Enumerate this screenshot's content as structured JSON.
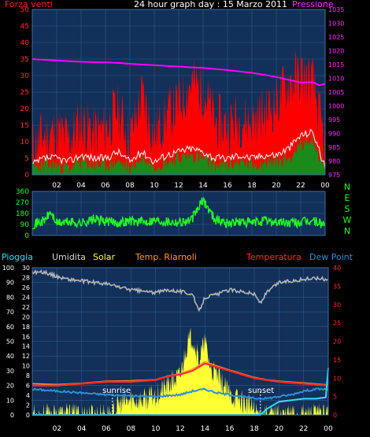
{
  "header": {
    "title": "24 hour graph day : 15 Marzo 2011",
    "left_label": "Forza venti",
    "right_label": "Pressione"
  },
  "legend": {
    "rain": "Pioggia",
    "humidity": "Umidita",
    "solar": "Solar",
    "heating_temp": "Temp. Riarnoli",
    "temperature": "Temperatura",
    "dew_point": "Dew Point"
  },
  "annotations": {
    "sunrise": "sunrise",
    "sunset": "sunset"
  },
  "colors": {
    "background": "#000000",
    "panel": "#12305a",
    "grid": "#2b5a8c",
    "wind_gust": "#ff0000",
    "wind_avg": "#ffffff",
    "wind_speed": "#1a8a1a",
    "pressure": "#ff00ff",
    "direction": "#22ff22",
    "humidity": "#b4b4b4",
    "solar": "#ffff33",
    "temperature": "#ff2a2a",
    "heating_temp": "#ff9933",
    "dew_point": "#2f8fd8",
    "rain": "#33ddff"
  },
  "chart_data": [
    {
      "type": "area",
      "id": "wind_pressure",
      "x_ticks": [
        "02",
        "04",
        "06",
        "08",
        "10",
        "12",
        "14",
        "16",
        "18",
        "20",
        "22",
        "00"
      ],
      "y_left_ticks": [
        0,
        5,
        10,
        15,
        20,
        25,
        30,
        35,
        40,
        45,
        50
      ],
      "y_right_ticks": [
        975,
        980,
        985,
        990,
        995,
        1000,
        1005,
        1010,
        1015,
        1020,
        1025,
        1030,
        1035
      ],
      "ylim_left": [
        0,
        50
      ],
      "ylim_right": [
        975,
        1035
      ],
      "xlim": [
        0,
        24
      ],
      "grid": true,
      "series": [
        {
          "name": "Forza venti",
          "key": "gust",
          "x": [
            0,
            1,
            2,
            3,
            4,
            5,
            6,
            7,
            8,
            9,
            10,
            11,
            12,
            13,
            14,
            15,
            16,
            17,
            18,
            19,
            20,
            21,
            22,
            23,
            24
          ],
          "values": [
            9,
            12,
            13,
            11,
            16,
            13,
            14,
            20,
            11,
            24,
            12,
            18,
            21,
            28,
            26,
            16,
            15,
            17,
            16,
            19,
            22,
            28,
            30,
            28,
            8
          ]
        },
        {
          "key": "avg",
          "x": [
            0,
            1,
            2,
            3,
            4,
            5,
            6,
            7,
            8,
            9,
            10,
            11,
            12,
            13,
            14,
            15,
            16,
            17,
            18,
            19,
            20,
            21,
            22,
            23,
            24
          ],
          "values": [
            3,
            5,
            5,
            4,
            6,
            5,
            5,
            7,
            4,
            7,
            4,
            6,
            7,
            8,
            7,
            5,
            5,
            6,
            5,
            6,
            6,
            8,
            12,
            13,
            2
          ]
        },
        {
          "key": "speed",
          "x": [
            0,
            1,
            2,
            3,
            4,
            5,
            6,
            7,
            8,
            9,
            10,
            11,
            12,
            13,
            14,
            15,
            16,
            17,
            18,
            19,
            20,
            21,
            22,
            23,
            24
          ],
          "values": [
            2,
            3,
            3,
            2,
            4,
            3,
            3,
            4,
            2,
            5,
            3,
            4,
            5,
            6,
            5,
            3,
            3,
            4,
            3,
            4,
            4,
            5,
            9,
            11,
            1
          ]
        },
        {
          "name": "Pressione",
          "key": "pressure",
          "x": [
            0,
            1,
            2,
            3,
            4,
            5,
            6,
            7,
            8,
            9,
            10,
            11,
            12,
            13,
            14,
            15,
            16,
            17,
            18,
            19,
            20,
            21,
            22,
            23,
            23.5,
            24
          ],
          "values": [
            1017,
            1016.7,
            1016.5,
            1016.2,
            1016,
            1015.9,
            1015.8,
            1015.6,
            1015.3,
            1015,
            1014.8,
            1014.5,
            1014.3,
            1014,
            1013.8,
            1013.4,
            1013,
            1012.5,
            1012,
            1011.3,
            1010.5,
            1009.5,
            1008.5,
            1008.6,
            1007.5,
            1008
          ]
        }
      ]
    },
    {
      "type": "line",
      "id": "wind_direction",
      "x_ticks": [
        "02",
        "04",
        "06",
        "08",
        "10",
        "12",
        "14",
        "16",
        "18",
        "20",
        "22",
        "00"
      ],
      "y_ticks": [
        0,
        90,
        180,
        270,
        360
      ],
      "compass": [
        "N",
        "W",
        "S",
        "E",
        "N"
      ],
      "ylim": [
        0,
        360
      ],
      "xlim": [
        0,
        24
      ],
      "series": [
        {
          "key": "direction",
          "x": [
            0,
            1,
            1.5,
            2,
            3,
            4,
            5,
            6,
            7,
            8,
            9,
            10,
            11,
            12,
            13,
            14,
            15,
            16,
            17,
            18,
            19,
            20,
            21,
            22,
            23,
            24
          ],
          "values": [
            90,
            120,
            190,
            100,
            110,
            100,
            130,
            115,
            105,
            120,
            110,
            125,
            115,
            110,
            120,
            290,
            130,
            100,
            110,
            100,
            120,
            110,
            100,
            105,
            120,
            85
          ]
        }
      ]
    },
    {
      "type": "line",
      "id": "temperature_solar",
      "x_ticks": [
        "02",
        "04",
        "06",
        "08",
        "10",
        "12",
        "14",
        "16",
        "18",
        "20",
        "22",
        "00"
      ],
      "y_left_ticks": [
        0,
        10,
        20,
        30,
        40,
        50,
        60,
        70,
        80,
        90,
        100
      ],
      "y_mid_ticks": [
        0,
        2,
        4,
        6,
        8,
        10,
        12,
        14,
        16,
        18,
        20,
        22,
        24,
        26,
        28,
        30
      ],
      "y_right_ticks": [
        0,
        5,
        10,
        15,
        20,
        25,
        30,
        35,
        40
      ],
      "ylim_left": [
        0,
        100
      ],
      "ylim_mid": [
        0,
        30
      ],
      "ylim_right": [
        0,
        40
      ],
      "xlim": [
        0,
        24
      ],
      "series": [
        {
          "name": "Umidita",
          "key": "humidity",
          "x": [
            0,
            1,
            2,
            3,
            4,
            5,
            6,
            7,
            8,
            9,
            10,
            11,
            12,
            13,
            13.5,
            14,
            15,
            16,
            17,
            18,
            18.5,
            19,
            20,
            21,
            22,
            23,
            24
          ],
          "values": [
            97,
            97,
            94,
            92,
            91,
            90,
            89,
            87,
            85,
            84,
            83,
            85,
            84,
            82,
            70,
            80,
            82,
            85,
            84,
            82,
            76,
            83,
            90,
            91,
            92,
            93,
            92
          ]
        },
        {
          "name": "Solar",
          "key": "solar",
          "x": [
            0,
            6.5,
            7,
            8,
            9,
            10,
            10.5,
            11,
            11.5,
            12,
            12.5,
            13,
            13.5,
            14,
            14.5,
            15,
            15.5,
            16,
            17,
            18,
            18.5,
            24
          ],
          "values": [
            0,
            0,
            2,
            3,
            3,
            4,
            5,
            6,
            7,
            8,
            14,
            16,
            11,
            15,
            9,
            8,
            6,
            4,
            3,
            1,
            0,
            0
          ]
        },
        {
          "name": "Temperatura",
          "key": "temperature",
          "x": [
            0,
            2,
            4,
            6,
            8,
            10,
            11,
            12,
            13,
            13.5,
            14,
            15,
            16,
            17,
            18,
            19,
            20,
            22,
            24
          ],
          "values": [
            8,
            8,
            8.5,
            9,
            9,
            9.5,
            10.5,
            11,
            12,
            13,
            14,
            13,
            12,
            11,
            10,
            9.5,
            9,
            8.5,
            8
          ]
        },
        {
          "name": "Temp. Riarnoli",
          "key": "heating_temp",
          "x": [
            0,
            2,
            4,
            6,
            8,
            10,
            11,
            12,
            13,
            13.5,
            14,
            15,
            16,
            17,
            18,
            19,
            20,
            22,
            24
          ],
          "values": [
            8.5,
            8.3,
            8.6,
            9.2,
            9.3,
            9.6,
            10.6,
            11.2,
            12.5,
            13.5,
            14.5,
            13.3,
            12.2,
            11.2,
            10.2,
            9.6,
            9.2,
            8.7,
            8.2
          ]
        },
        {
          "name": "Dew Point",
          "key": "dew_point",
          "x": [
            0,
            2,
            4,
            6,
            8,
            10,
            12,
            13,
            14,
            15,
            16,
            17,
            18,
            19,
            20,
            21,
            22,
            23,
            24
          ],
          "values": [
            7,
            6.5,
            6,
            5.5,
            5.2,
            5,
            5.5,
            6.5,
            7,
            6,
            5.5,
            5,
            4.5,
            4.5,
            5,
            5.5,
            6.5,
            7,
            7
          ]
        },
        {
          "name": "Pioggia",
          "key": "rain",
          "x": [
            0,
            18.5,
            19,
            20,
            21,
            22,
            23,
            23.8,
            24
          ],
          "values": [
            0,
            0,
            4,
            9,
            10,
            11,
            11,
            12,
            32
          ]
        }
      ]
    }
  ]
}
